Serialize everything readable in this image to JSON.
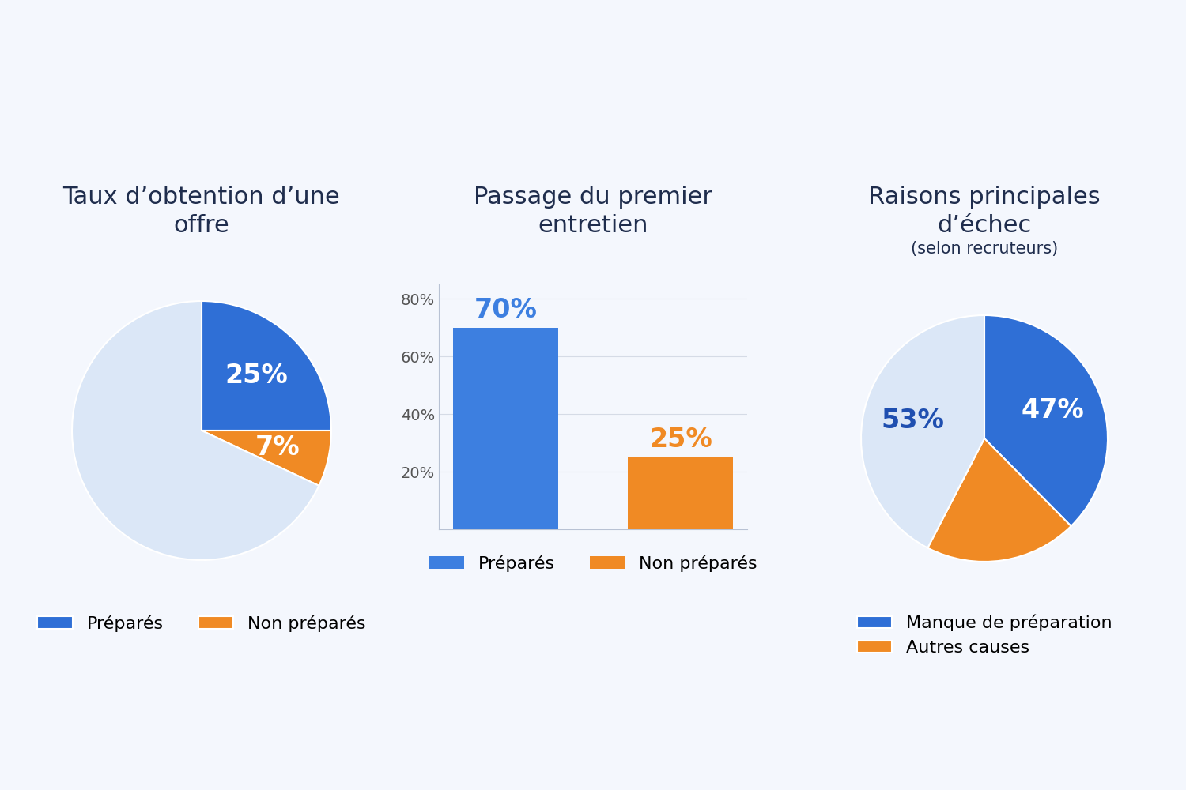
{
  "chart_data": [
    {
      "type": "pie",
      "title": "Taux d’obtention d’une offre",
      "categories": [
        "Préparés",
        "Non préparés",
        null
      ],
      "values": [
        25,
        7,
        68
      ],
      "value_labels": [
        "25%",
        "7%",
        null
      ],
      "colors": [
        "#2f6fd6",
        "#f08a24",
        "#dbe7f7"
      ],
      "data_labels": true,
      "legend": "upper center"
    },
    {
      "type": "bar",
      "title": "Passage du premier entretien",
      "categories": [
        "Préparés",
        "Non préparés"
      ],
      "values": [
        70,
        25
      ],
      "value_labels": [
        "70%",
        "25%"
      ],
      "colors": [
        "#3d7fe0",
        "#f08a24"
      ],
      "ylim": [
        0,
        85
      ],
      "yticks": [
        {
          "value": 20,
          "label": "20%"
        },
        {
          "value": 40,
          "label": "40%"
        },
        {
          "value": 60,
          "label": "60%"
        },
        {
          "value": 80,
          "label": "80%"
        }
      ],
      "grid": true,
      "data_labels": true,
      "tick_labels": "y",
      "legend": "upper center"
    },
    {
      "type": "pie",
      "title": "Raisons principales d’échec",
      "subtitle": "(selon recruteurs)",
      "categories": [
        "Manque de préparation",
        "Autres causes",
        null
      ],
      "values": [
        47,
        25,
        53
      ],
      "value_labels": [
        "47%",
        null,
        "53%"
      ],
      "colors": [
        "#2f6fd6",
        "#f08a24",
        "#dbe7f7"
      ],
      "data_labels": true,
      "legend": "upper center"
    }
  ]
}
